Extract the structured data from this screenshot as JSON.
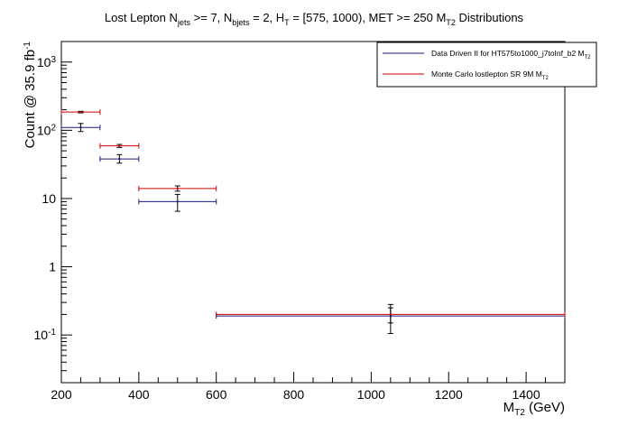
{
  "chart_data": {
    "type": "scatter",
    "title": {
      "parts": [
        {
          "t": "Lost Lepton N"
        },
        {
          "t": "jets",
          "sub": true
        },
        {
          "t": " >= 7, N"
        },
        {
          "t": "bjets",
          "sub": true
        },
        {
          "t": " = 2, H"
        },
        {
          "t": "T",
          "sub": true
        },
        {
          "t": " = [575, 1000), MET >= 250 M"
        },
        {
          "t": "T2",
          "sub": true
        },
        {
          "t": " Distributions"
        }
      ]
    },
    "xlabel": {
      "main": "M",
      "sub": "T2",
      "rest": " (GeV)"
    },
    "ylabel": {
      "main": "Count @ 35.9 fb",
      "sup": "-1"
    },
    "xlim": [
      200,
      1500
    ],
    "ylim": [
      0.02,
      2000
    ],
    "yscale": "log",
    "x_ticks": [
      200,
      400,
      600,
      800,
      1000,
      1200,
      1400
    ],
    "x_tick_labels": [
      "200",
      "400",
      "600",
      "800",
      "1000",
      "1200",
      "1400"
    ],
    "y_ticks": [
      {
        "value": 0.1,
        "base": "10",
        "exp": "-1"
      },
      {
        "value": 1,
        "base": "1",
        "exp": ""
      },
      {
        "value": 10,
        "base": "10",
        "exp": ""
      },
      {
        "value": 100,
        "base": "10",
        "exp": "2"
      },
      {
        "value": 1000,
        "base": "10",
        "exp": "3"
      }
    ],
    "legend": {
      "position": "top-right",
      "entries": [
        {
          "series": 0,
          "parts": [
            {
              "t": "Data Driven II for HT575to1000_j7toInf_b2 M"
            },
            {
              "t": "T2",
              "sub": true
            }
          ]
        },
        {
          "series": 1,
          "parts": [
            {
              "t": "Monte Carlo lostlepton SR 9M M"
            },
            {
              "t": "T2",
              "sub": true
            }
          ]
        }
      ]
    },
    "series": [
      {
        "color": "#1a1a7a",
        "points": [
          {
            "x": 250,
            "xlow": 200,
            "xhigh": 300,
            "y": 110,
            "ylow": 96,
            "yhigh": 126
          },
          {
            "x": 350,
            "xlow": 300,
            "xhigh": 400,
            "y": 38,
            "ylow": 33,
            "yhigh": 44
          },
          {
            "x": 500,
            "xlow": 400,
            "xhigh": 600,
            "y": 9,
            "ylow": 6.5,
            "yhigh": 11.5
          },
          {
            "x": 1050,
            "xlow": 600,
            "xhigh": 1500,
            "y": 0.19,
            "ylow": 0.105,
            "yhigh": 0.28
          }
        ]
      },
      {
        "color": "#cc0000",
        "points": [
          {
            "x": 250,
            "xlow": 200,
            "xhigh": 300,
            "y": 185,
            "ylow": 180,
            "yhigh": 190
          },
          {
            "x": 350,
            "xlow": 300,
            "xhigh": 400,
            "y": 59,
            "ylow": 56,
            "yhigh": 62
          },
          {
            "x": 500,
            "xlow": 400,
            "xhigh": 600,
            "y": 14,
            "ylow": 12.8,
            "yhigh": 15.3
          },
          {
            "x": 1050,
            "xlow": 600,
            "xhigh": 1500,
            "y": 0.2,
            "ylow": 0.15,
            "yhigh": 0.25
          }
        ]
      }
    ]
  }
}
